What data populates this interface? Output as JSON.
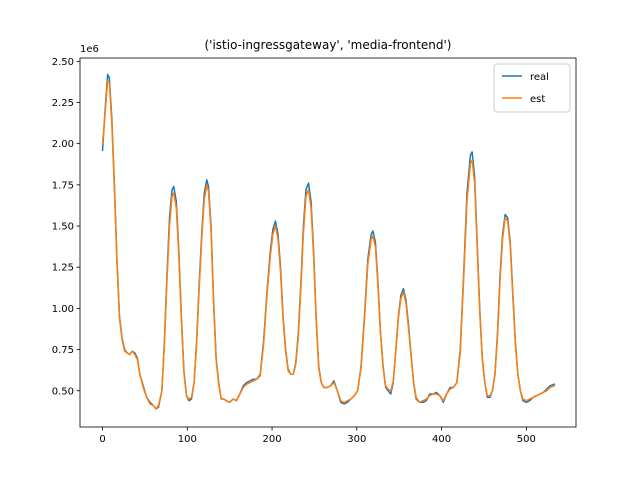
{
  "chart_data": {
    "type": "line",
    "title": "('istio-ingressgateway', 'media-frontend')",
    "xlabel": "",
    "ylabel": "",
    "y_offset_label": "1e6",
    "xlim": [
      -26.6,
      558.6
    ],
    "ylim": [
      0.28,
      2.52
    ],
    "x_ticks": [
      0,
      100,
      200,
      300,
      400,
      500
    ],
    "y_ticks": [
      0.5,
      0.75,
      1.0,
      1.25,
      1.5,
      1.75,
      2.0,
      2.25,
      2.5
    ],
    "x_tick_labels": [
      "0",
      "100",
      "200",
      "300",
      "400",
      "500"
    ],
    "y_tick_labels": [
      "0.50",
      "0.75",
      "1.00",
      "1.25",
      "1.50",
      "1.75",
      "2.00",
      "2.25",
      "2.50"
    ],
    "grid": false,
    "legend_position": "top-right",
    "series": [
      {
        "name": "real",
        "color": "#1f77b4",
        "points": [
          [
            0,
            1.96
          ],
          [
            3,
            2.2
          ],
          [
            6,
            2.42
          ],
          [
            8,
            2.4
          ],
          [
            11,
            2.15
          ],
          [
            14,
            1.75
          ],
          [
            17,
            1.3
          ],
          [
            20,
            0.95
          ],
          [
            23,
            0.82
          ],
          [
            26,
            0.75
          ],
          [
            29,
            0.73
          ],
          [
            32,
            0.72
          ],
          [
            35,
            0.74
          ],
          [
            38,
            0.73
          ],
          [
            41,
            0.7
          ],
          [
            44,
            0.6
          ],
          [
            48,
            0.53
          ],
          [
            52,
            0.46
          ],
          [
            56,
            0.43
          ],
          [
            60,
            0.41
          ],
          [
            63,
            0.39
          ],
          [
            66,
            0.4
          ],
          [
            70,
            0.5
          ],
          [
            73,
            0.8
          ],
          [
            76,
            1.2
          ],
          [
            79,
            1.55
          ],
          [
            82,
            1.72
          ],
          [
            84,
            1.74
          ],
          [
            87,
            1.65
          ],
          [
            90,
            1.35
          ],
          [
            93,
            0.95
          ],
          [
            96,
            0.62
          ],
          [
            99,
            0.47
          ],
          [
            102,
            0.44
          ],
          [
            105,
            0.45
          ],
          [
            108,
            0.55
          ],
          [
            111,
            0.8
          ],
          [
            114,
            1.15
          ],
          [
            117,
            1.45
          ],
          [
            120,
            1.7
          ],
          [
            123,
            1.78
          ],
          [
            125,
            1.74
          ],
          [
            128,
            1.5
          ],
          [
            131,
            1.05
          ],
          [
            134,
            0.7
          ],
          [
            137,
            0.55
          ],
          [
            140,
            0.45
          ],
          [
            143,
            0.45
          ],
          [
            146,
            0.44
          ],
          [
            150,
            0.43
          ],
          [
            154,
            0.45
          ],
          [
            158,
            0.44
          ],
          [
            162,
            0.48
          ],
          [
            166,
            0.53
          ],
          [
            170,
            0.55
          ],
          [
            174,
            0.56
          ],
          [
            178,
            0.57
          ],
          [
            182,
            0.57
          ],
          [
            186,
            0.6
          ],
          [
            190,
            0.8
          ],
          [
            194,
            1.1
          ],
          [
            198,
            1.35
          ],
          [
            201,
            1.48
          ],
          [
            204,
            1.53
          ],
          [
            207,
            1.45
          ],
          [
            210,
            1.25
          ],
          [
            213,
            0.95
          ],
          [
            216,
            0.75
          ],
          [
            219,
            0.63
          ],
          [
            222,
            0.6
          ],
          [
            225,
            0.6
          ],
          [
            228,
            0.67
          ],
          [
            231,
            0.85
          ],
          [
            234,
            1.15
          ],
          [
            237,
            1.5
          ],
          [
            240,
            1.72
          ],
          [
            243,
            1.76
          ],
          [
            246,
            1.65
          ],
          [
            249,
            1.35
          ],
          [
            252,
            0.95
          ],
          [
            255,
            0.65
          ],
          [
            258,
            0.55
          ],
          [
            261,
            0.52
          ],
          [
            265,
            0.52
          ],
          [
            269,
            0.53
          ],
          [
            273,
            0.56
          ],
          [
            277,
            0.5
          ],
          [
            281,
            0.43
          ],
          [
            285,
            0.42
          ],
          [
            289,
            0.43
          ],
          [
            293,
            0.45
          ],
          [
            297,
            0.47
          ],
          [
            301,
            0.5
          ],
          [
            305,
            0.65
          ],
          [
            309,
            0.95
          ],
          [
            313,
            1.3
          ],
          [
            317,
            1.45
          ],
          [
            319,
            1.47
          ],
          [
            322,
            1.4
          ],
          [
            325,
            1.15
          ],
          [
            328,
            0.85
          ],
          [
            331,
            0.65
          ],
          [
            334,
            0.52
          ],
          [
            337,
            0.5
          ],
          [
            340,
            0.48
          ],
          [
            343,
            0.55
          ],
          [
            346,
            0.75
          ],
          [
            349,
            0.95
          ],
          [
            352,
            1.08
          ],
          [
            355,
            1.12
          ],
          [
            358,
            1.05
          ],
          [
            361,
            0.9
          ],
          [
            364,
            0.72
          ],
          [
            367,
            0.55
          ],
          [
            370,
            0.45
          ],
          [
            374,
            0.43
          ],
          [
            378,
            0.43
          ],
          [
            382,
            0.44
          ],
          [
            386,
            0.48
          ],
          [
            390,
            0.48
          ],
          [
            394,
            0.49
          ],
          [
            398,
            0.47
          ],
          [
            402,
            0.43
          ],
          [
            406,
            0.48
          ],
          [
            410,
            0.52
          ],
          [
            414,
            0.52
          ],
          [
            418,
            0.55
          ],
          [
            422,
            0.75
          ],
          [
            426,
            1.2
          ],
          [
            430,
            1.7
          ],
          [
            434,
            1.93
          ],
          [
            436,
            1.95
          ],
          [
            439,
            1.8
          ],
          [
            442,
            1.4
          ],
          [
            445,
            1.0
          ],
          [
            448,
            0.7
          ],
          [
            451,
            0.55
          ],
          [
            454,
            0.46
          ],
          [
            457,
            0.46
          ],
          [
            460,
            0.5
          ],
          [
            463,
            0.6
          ],
          [
            466,
            0.85
          ],
          [
            469,
            1.2
          ],
          [
            472,
            1.45
          ],
          [
            475,
            1.57
          ],
          [
            478,
            1.55
          ],
          [
            481,
            1.4
          ],
          [
            484,
            1.1
          ],
          [
            487,
            0.8
          ],
          [
            490,
            0.6
          ],
          [
            493,
            0.5
          ],
          [
            496,
            0.44
          ],
          [
            500,
            0.43
          ],
          [
            504,
            0.44
          ],
          [
            508,
            0.46
          ],
          [
            512,
            0.47
          ],
          [
            516,
            0.48
          ],
          [
            520,
            0.49
          ],
          [
            524,
            0.51
          ],
          [
            528,
            0.53
          ],
          [
            533,
            0.54
          ]
        ]
      },
      {
        "name": "est",
        "color": "#ff7f0e",
        "points": [
          [
            0,
            2.0
          ],
          [
            3,
            2.18
          ],
          [
            6,
            2.38
          ],
          [
            8,
            2.37
          ],
          [
            11,
            2.12
          ],
          [
            14,
            1.72
          ],
          [
            17,
            1.28
          ],
          [
            20,
            0.94
          ],
          [
            23,
            0.81
          ],
          [
            26,
            0.74
          ],
          [
            29,
            0.73
          ],
          [
            32,
            0.72
          ],
          [
            35,
            0.74
          ],
          [
            38,
            0.72
          ],
          [
            41,
            0.69
          ],
          [
            44,
            0.6
          ],
          [
            48,
            0.52
          ],
          [
            52,
            0.46
          ],
          [
            56,
            0.42
          ],
          [
            60,
            0.41
          ],
          [
            63,
            0.39
          ],
          [
            66,
            0.41
          ],
          [
            70,
            0.5
          ],
          [
            73,
            0.78
          ],
          [
            76,
            1.17
          ],
          [
            79,
            1.5
          ],
          [
            82,
            1.68
          ],
          [
            84,
            1.7
          ],
          [
            87,
            1.61
          ],
          [
            90,
            1.32
          ],
          [
            93,
            0.93
          ],
          [
            96,
            0.61
          ],
          [
            99,
            0.47
          ],
          [
            102,
            0.45
          ],
          [
            105,
            0.46
          ],
          [
            108,
            0.55
          ],
          [
            111,
            0.78
          ],
          [
            114,
            1.12
          ],
          [
            117,
            1.42
          ],
          [
            120,
            1.66
          ],
          [
            123,
            1.75
          ],
          [
            125,
            1.71
          ],
          [
            128,
            1.47
          ],
          [
            131,
            1.03
          ],
          [
            134,
            0.69
          ],
          [
            137,
            0.54
          ],
          [
            140,
            0.45
          ],
          [
            143,
            0.45
          ],
          [
            146,
            0.44
          ],
          [
            150,
            0.43
          ],
          [
            154,
            0.45
          ],
          [
            158,
            0.44
          ],
          [
            162,
            0.48
          ],
          [
            166,
            0.52
          ],
          [
            170,
            0.54
          ],
          [
            174,
            0.55
          ],
          [
            178,
            0.56
          ],
          [
            182,
            0.57
          ],
          [
            186,
            0.59
          ],
          [
            190,
            0.78
          ],
          [
            194,
            1.08
          ],
          [
            198,
            1.32
          ],
          [
            201,
            1.45
          ],
          [
            204,
            1.5
          ],
          [
            207,
            1.42
          ],
          [
            210,
            1.22
          ],
          [
            213,
            0.93
          ],
          [
            216,
            0.74
          ],
          [
            219,
            0.62
          ],
          [
            222,
            0.6
          ],
          [
            225,
            0.6
          ],
          [
            228,
            0.66
          ],
          [
            231,
            0.83
          ],
          [
            234,
            1.12
          ],
          [
            237,
            1.46
          ],
          [
            240,
            1.68
          ],
          [
            243,
            1.72
          ],
          [
            246,
            1.61
          ],
          [
            249,
            1.32
          ],
          [
            252,
            0.93
          ],
          [
            255,
            0.64
          ],
          [
            258,
            0.55
          ],
          [
            261,
            0.52
          ],
          [
            265,
            0.52
          ],
          [
            269,
            0.53
          ],
          [
            273,
            0.55
          ],
          [
            277,
            0.5
          ],
          [
            281,
            0.44
          ],
          [
            285,
            0.43
          ],
          [
            289,
            0.44
          ],
          [
            293,
            0.45
          ],
          [
            297,
            0.47
          ],
          [
            301,
            0.5
          ],
          [
            305,
            0.64
          ],
          [
            309,
            0.93
          ],
          [
            313,
            1.27
          ],
          [
            317,
            1.42
          ],
          [
            319,
            1.44
          ],
          [
            322,
            1.37
          ],
          [
            325,
            1.13
          ],
          [
            328,
            0.84
          ],
          [
            331,
            0.64
          ],
          [
            334,
            0.53
          ],
          [
            337,
            0.51
          ],
          [
            340,
            0.5
          ],
          [
            343,
            0.56
          ],
          [
            346,
            0.74
          ],
          [
            349,
            0.94
          ],
          [
            352,
            1.06
          ],
          [
            355,
            1.1
          ],
          [
            358,
            1.03
          ],
          [
            361,
            0.88
          ],
          [
            364,
            0.71
          ],
          [
            367,
            0.55
          ],
          [
            370,
            0.46
          ],
          [
            374,
            0.43
          ],
          [
            378,
            0.44
          ],
          [
            382,
            0.45
          ],
          [
            386,
            0.47
          ],
          [
            390,
            0.48
          ],
          [
            394,
            0.48
          ],
          [
            398,
            0.47
          ],
          [
            402,
            0.44
          ],
          [
            406,
            0.48
          ],
          [
            410,
            0.51
          ],
          [
            414,
            0.52
          ],
          [
            418,
            0.55
          ],
          [
            422,
            0.73
          ],
          [
            426,
            1.17
          ],
          [
            430,
            1.65
          ],
          [
            434,
            1.88
          ],
          [
            436,
            1.9
          ],
          [
            439,
            1.76
          ],
          [
            442,
            1.37
          ],
          [
            445,
            0.98
          ],
          [
            448,
            0.69
          ],
          [
            451,
            0.55
          ],
          [
            454,
            0.47
          ],
          [
            457,
            0.47
          ],
          [
            460,
            0.5
          ],
          [
            463,
            0.6
          ],
          [
            466,
            0.83
          ],
          [
            469,
            1.17
          ],
          [
            472,
            1.42
          ],
          [
            475,
            1.55
          ],
          [
            478,
            1.53
          ],
          [
            481,
            1.38
          ],
          [
            484,
            1.08
          ],
          [
            487,
            0.79
          ],
          [
            490,
            0.6
          ],
          [
            493,
            0.5
          ],
          [
            496,
            0.45
          ],
          [
            500,
            0.44
          ],
          [
            504,
            0.45
          ],
          [
            508,
            0.46
          ],
          [
            512,
            0.47
          ],
          [
            516,
            0.48
          ],
          [
            520,
            0.49
          ],
          [
            524,
            0.5
          ],
          [
            528,
            0.52
          ],
          [
            533,
            0.53
          ]
        ]
      }
    ]
  }
}
